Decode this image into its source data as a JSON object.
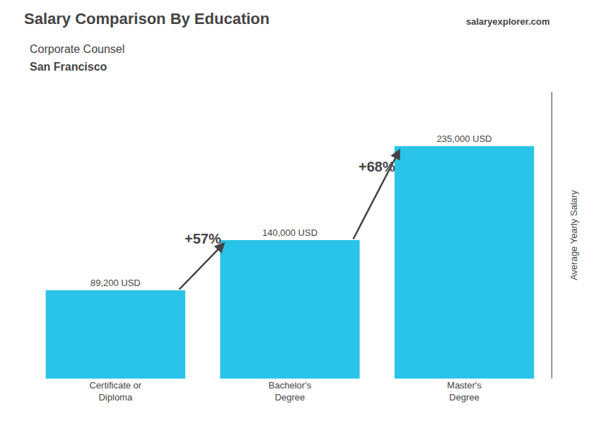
{
  "chart_data": {
    "type": "bar",
    "title": "Salary Comparison By Education",
    "subtitle": [
      "Corporate Counsel",
      "San Francisco"
    ],
    "ylabel": "Average Yearly Salary",
    "categories": [
      "Certificate or\nDiploma",
      "Bachelor's\nDegree",
      "Master's\nDegree"
    ],
    "values": [
      89200,
      140000,
      235000
    ],
    "value_labels": [
      "89,200 USD",
      "140,000 USD",
      "235,000 USD"
    ],
    "data_labels": true,
    "annotations": [
      "+57%",
      "+68%",
      "salaryexplorer.com"
    ],
    "color": "#29c4e8",
    "ylim": [
      0,
      290000
    ],
    "grid": false,
    "tick_labels": "x"
  }
}
